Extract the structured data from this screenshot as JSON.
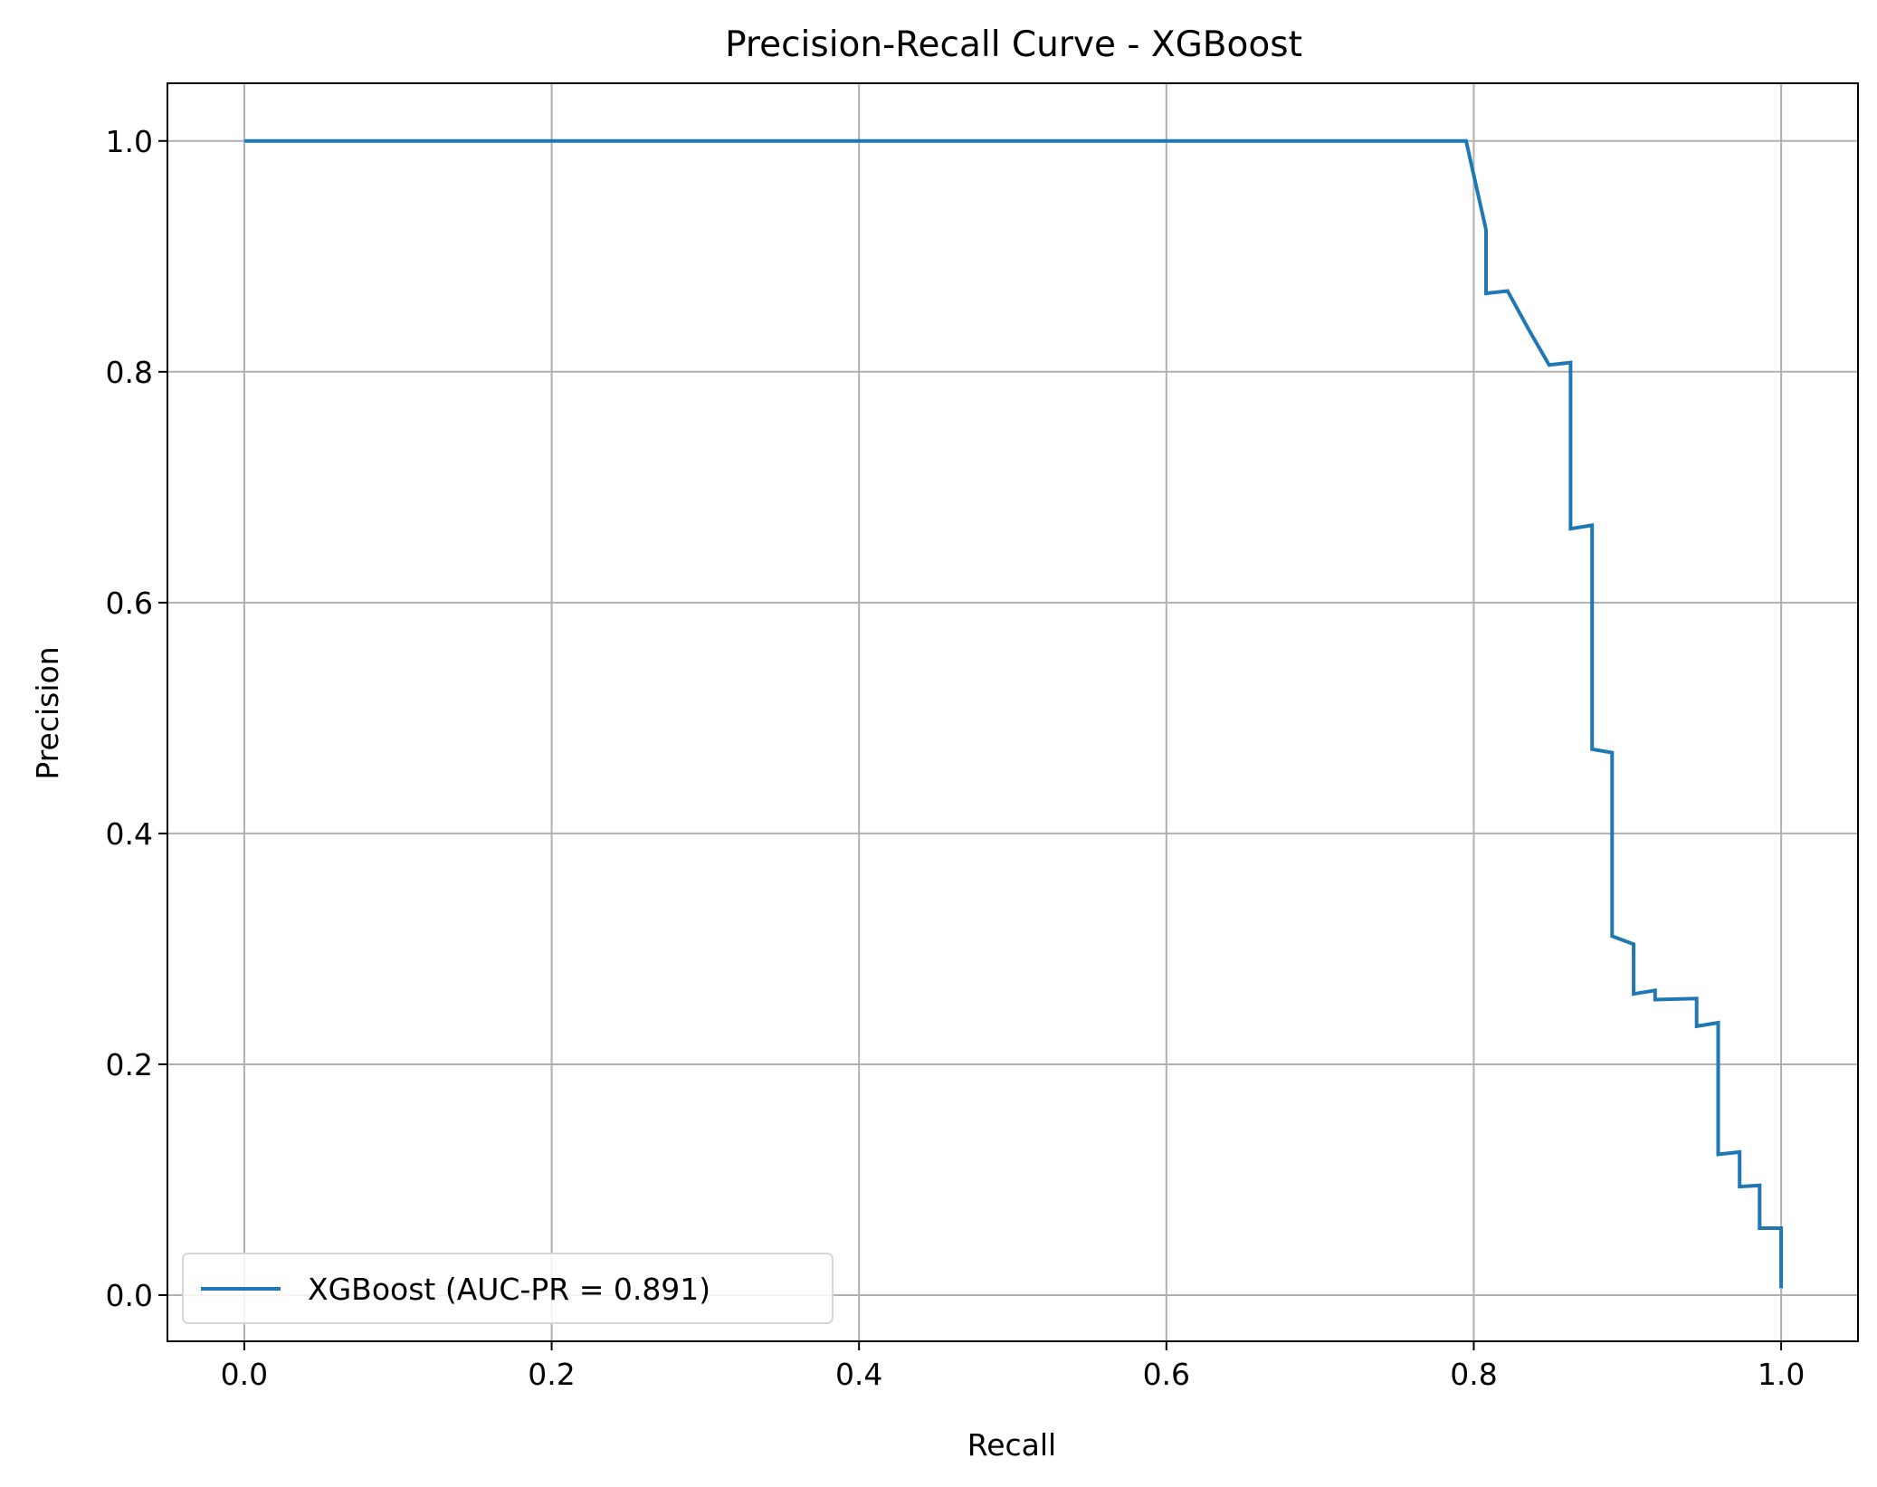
{
  "chart_data": {
    "type": "line",
    "title": "Precision-Recall Curve - XGBoost",
    "xlabel": "Recall",
    "ylabel": "Precision",
    "xlim": [
      -0.05,
      1.05
    ],
    "ylim": [
      -0.04,
      1.05
    ],
    "xticks": [
      0.0,
      0.2,
      0.4,
      0.6,
      0.8,
      1.0
    ],
    "xtick_labels": [
      "0.0",
      "0.2",
      "0.4",
      "0.6",
      "0.8",
      "1.0"
    ],
    "yticks": [
      0.0,
      0.2,
      0.4,
      0.6,
      0.8,
      1.0
    ],
    "ytick_labels": [
      "0.0",
      "0.2",
      "0.4",
      "0.6",
      "0.8",
      "1.0"
    ],
    "grid": true,
    "legend": {
      "position": "lower-left",
      "entries": [
        "XGBoost (AUC-PR = 0.891)"
      ]
    },
    "series": [
      {
        "name": "XGBoost (AUC-PR = 0.891)",
        "color": "#1f77b4",
        "x": [
          0.0,
          0.795,
          0.808,
          0.808,
          0.822,
          0.836,
          0.849,
          0.863,
          0.863,
          0.877,
          0.877,
          0.89,
          0.89,
          0.904,
          0.904,
          0.918,
          0.918,
          0.945,
          0.945,
          0.959,
          0.959,
          0.973,
          0.973,
          0.986,
          0.986,
          1.0,
          1.0
        ],
        "y": [
          1.0,
          1.0,
          0.923,
          0.868,
          0.87,
          0.836,
          0.806,
          0.808,
          0.664,
          0.667,
          0.473,
          0.47,
          0.311,
          0.304,
          0.261,
          0.264,
          0.256,
          0.257,
          0.233,
          0.236,
          0.122,
          0.124,
          0.094,
          0.095,
          0.058,
          0.058,
          0.006
        ]
      }
    ]
  }
}
